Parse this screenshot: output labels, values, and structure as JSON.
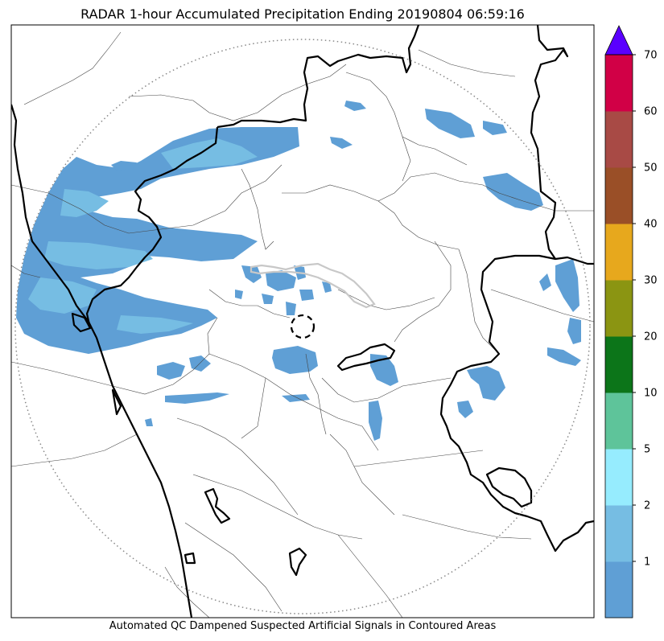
{
  "title": "RADAR 1-hour Accumulated Precipitation Ending 20190804 06:59:16",
  "caption": "Automated QC Dampened Suspected Artificial Signals in Contoured Areas",
  "colorbar": {
    "ticks": [
      "1",
      "2",
      "5",
      "10",
      "20",
      "30",
      "40",
      "50",
      "60",
      "70"
    ],
    "colors": [
      "#5f9fd5",
      "#76bde3",
      "#96ecfe",
      "#5ec49a",
      "#0c7519",
      "#8b9512",
      "#e7a81d",
      "#9a4f27",
      "#a84a45",
      "#d10046"
    ],
    "extend_color": "#5a00ff"
  },
  "colors": {
    "light_precip": "#5f9fd5",
    "moderate_precip": "#76bde3",
    "border": "#000000",
    "district": "#444444",
    "range_ring": "#888888"
  }
}
